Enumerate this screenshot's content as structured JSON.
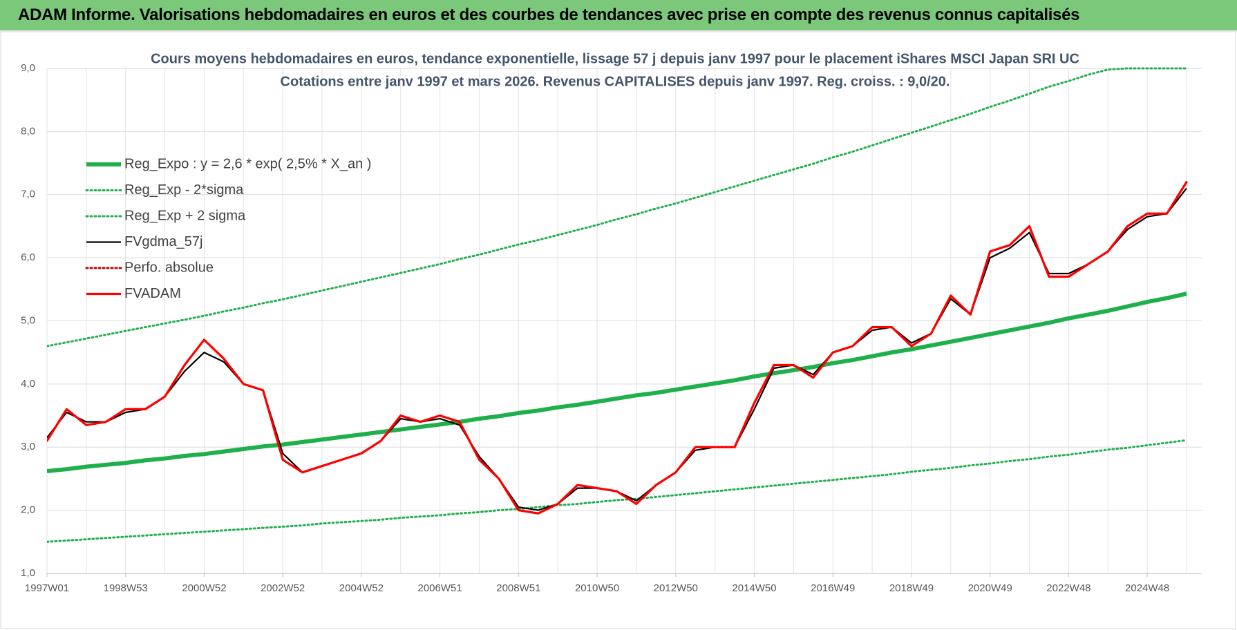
{
  "header": {
    "title": "ADAM Informe. Valorisations hebdomadaires en euros et des courbes de tendances avec prise en compte des revenus connus capitalisés"
  },
  "chart_data": {
    "type": "line",
    "title": "Cours moyens hebdomadaires en euros, tendance exponentielle, lissage 57 j depuis janv 1997  pour le placement iShares MSCI Japan SRI UC",
    "subtitle": "Cotations entre janv 1997 et mars 2026. Revenus CAPITALISES depuis janv 1997. Reg. croiss. : 9,0/20.",
    "categories": [
      "1997W01",
      null,
      null,
      null,
      "1998W53",
      null,
      null,
      null,
      "2000W52",
      null,
      null,
      null,
      "2002W52",
      null,
      null,
      null,
      "2004W52",
      null,
      null,
      null,
      "2006W51",
      null,
      null,
      null,
      "2008W51",
      null,
      null,
      null,
      "2010W50",
      null,
      null,
      null,
      "2012W50",
      null,
      null,
      null,
      "2014W50",
      null,
      null,
      null,
      "2016W49",
      null,
      null,
      null,
      "2018W49",
      null,
      null,
      null,
      "2020W49",
      null,
      null,
      null,
      "2022W48",
      null,
      null,
      null,
      "2024W48",
      null,
      null
    ],
    "ylim": [
      1,
      9
    ],
    "yticks": [
      {
        "value": 1,
        "label": "1,0"
      },
      {
        "value": 2,
        "label": "2,0"
      },
      {
        "value": 3,
        "label": "3,0"
      },
      {
        "value": 4,
        "label": "4,0"
      },
      {
        "value": 5,
        "label": "5,0"
      },
      {
        "value": 6,
        "label": "6,0"
      },
      {
        "value": 7,
        "label": "7,0"
      },
      {
        "value": 8,
        "label": "8,0"
      },
      {
        "value": 9,
        "label": "9,0"
      }
    ],
    "grid": true,
    "legend": "upper left",
    "series": [
      {
        "name": "Reg_Expo : y = 2,6 * exp( 2,5% *  X_an )",
        "color": "#1fb04c",
        "line_style": "thick",
        "values": [
          2.62,
          2.65,
          2.69,
          2.72,
          2.75,
          2.79,
          2.82,
          2.86,
          2.89,
          2.93,
          2.97,
          3.01,
          3.04,
          3.08,
          3.12,
          3.16,
          3.2,
          3.24,
          3.28,
          3.32,
          3.36,
          3.4,
          3.45,
          3.49,
          3.54,
          3.58,
          3.63,
          3.67,
          3.72,
          3.77,
          3.82,
          3.86,
          3.91,
          3.96,
          4.01,
          4.06,
          4.12,
          4.17,
          4.22,
          4.27,
          4.33,
          4.38,
          4.44,
          4.5,
          4.55,
          4.61,
          4.67,
          4.73,
          4.79,
          4.85,
          4.91,
          4.97,
          5.04,
          5.1,
          5.16,
          5.23,
          5.3,
          5.36,
          5.43
        ]
      },
      {
        "name": "Reg_Exp - 2*sigma",
        "color": "#1fb04c",
        "line_style": "dotted",
        "values": [
          1.5,
          1.52,
          1.54,
          1.56,
          1.58,
          1.6,
          1.62,
          1.64,
          1.66,
          1.68,
          1.7,
          1.72,
          1.74,
          1.76,
          1.79,
          1.81,
          1.83,
          1.85,
          1.88,
          1.9,
          1.92,
          1.95,
          1.97,
          2.0,
          2.02,
          2.05,
          2.08,
          2.1,
          2.13,
          2.16,
          2.18,
          2.21,
          2.24,
          2.27,
          2.3,
          2.33,
          2.36,
          2.39,
          2.42,
          2.45,
          2.48,
          2.51,
          2.54,
          2.57,
          2.61,
          2.64,
          2.67,
          2.71,
          2.74,
          2.78,
          2.81,
          2.85,
          2.88,
          2.92,
          2.96,
          2.99,
          3.03,
          3.07,
          3.11
        ]
      },
      {
        "name": "Reg_Exp + 2 sigma",
        "color": "#1fb04c",
        "line_style": "dotted",
        "values": [
          4.6,
          4.66,
          4.72,
          4.78,
          4.84,
          4.9,
          4.96,
          5.02,
          5.08,
          5.15,
          5.21,
          5.28,
          5.34,
          5.41,
          5.48,
          5.55,
          5.62,
          5.69,
          5.76,
          5.83,
          5.9,
          5.98,
          6.05,
          6.13,
          6.21,
          6.28,
          6.36,
          6.44,
          6.52,
          6.61,
          6.69,
          6.78,
          6.86,
          6.95,
          7.04,
          7.13,
          7.22,
          7.31,
          7.4,
          7.49,
          7.59,
          7.68,
          7.78,
          7.88,
          7.98,
          8.08,
          8.18,
          8.28,
          8.39,
          8.49,
          8.6,
          8.71,
          8.8,
          8.9,
          8.98,
          9.0,
          9.0,
          9.0,
          9.0
        ]
      },
      {
        "name": "FVgdma_57j",
        "color": "#000000",
        "line_style": "solid",
        "values": [
          3.15,
          3.55,
          3.4,
          3.4,
          3.55,
          3.6,
          3.8,
          4.2,
          4.5,
          4.35,
          4.0,
          3.9,
          2.9,
          2.6,
          2.7,
          2.8,
          2.9,
          3.1,
          3.45,
          3.4,
          3.45,
          3.35,
          2.85,
          2.5,
          2.05,
          2.0,
          2.1,
          2.35,
          2.35,
          2.3,
          2.15,
          2.4,
          2.6,
          2.95,
          3.0,
          3.0,
          3.6,
          4.25,
          4.3,
          4.15,
          4.5,
          4.6,
          4.85,
          4.9,
          4.65,
          4.8,
          5.35,
          5.1,
          6.0,
          6.15,
          6.4,
          5.75,
          5.75,
          5.9,
          6.1,
          6.45,
          6.65,
          6.7,
          7.1
        ]
      },
      {
        "name": "Perfo. absolue",
        "color": "#c00000",
        "line_style": "dotted",
        "values": [
          3.1,
          3.6,
          3.35,
          3.4,
          3.6,
          3.6,
          3.8,
          4.3,
          4.7,
          4.4,
          4.0,
          3.9,
          2.8,
          2.6,
          2.7,
          2.8,
          2.9,
          3.1,
          3.5,
          3.4,
          3.5,
          3.4,
          2.8,
          2.5,
          2.0,
          1.95,
          2.1,
          2.4,
          2.35,
          2.3,
          2.1,
          2.4,
          2.6,
          3.0,
          3.0,
          3.0,
          3.7,
          4.3,
          4.3,
          4.1,
          4.5,
          4.6,
          4.9,
          4.9,
          4.6,
          4.8,
          5.4,
          5.1,
          6.1,
          6.2,
          6.5,
          5.7,
          5.7,
          5.9,
          6.1,
          6.5,
          6.7,
          6.7,
          7.2
        ]
      },
      {
        "name": "FVADAM",
        "color": "#ff0000",
        "line_style": "medium",
        "values": [
          3.1,
          3.6,
          3.35,
          3.4,
          3.6,
          3.6,
          3.8,
          4.3,
          4.7,
          4.4,
          4.0,
          3.9,
          2.8,
          2.6,
          2.7,
          2.8,
          2.9,
          3.1,
          3.5,
          3.4,
          3.5,
          3.4,
          2.8,
          2.5,
          2.0,
          1.95,
          2.1,
          2.4,
          2.35,
          2.3,
          2.1,
          2.4,
          2.6,
          3.0,
          3.0,
          3.0,
          3.7,
          4.3,
          4.3,
          4.1,
          4.5,
          4.6,
          4.9,
          4.9,
          4.6,
          4.8,
          5.4,
          5.1,
          6.1,
          6.2,
          6.5,
          5.7,
          5.7,
          5.9,
          6.1,
          6.5,
          6.7,
          6.7,
          7.2
        ]
      }
    ]
  }
}
